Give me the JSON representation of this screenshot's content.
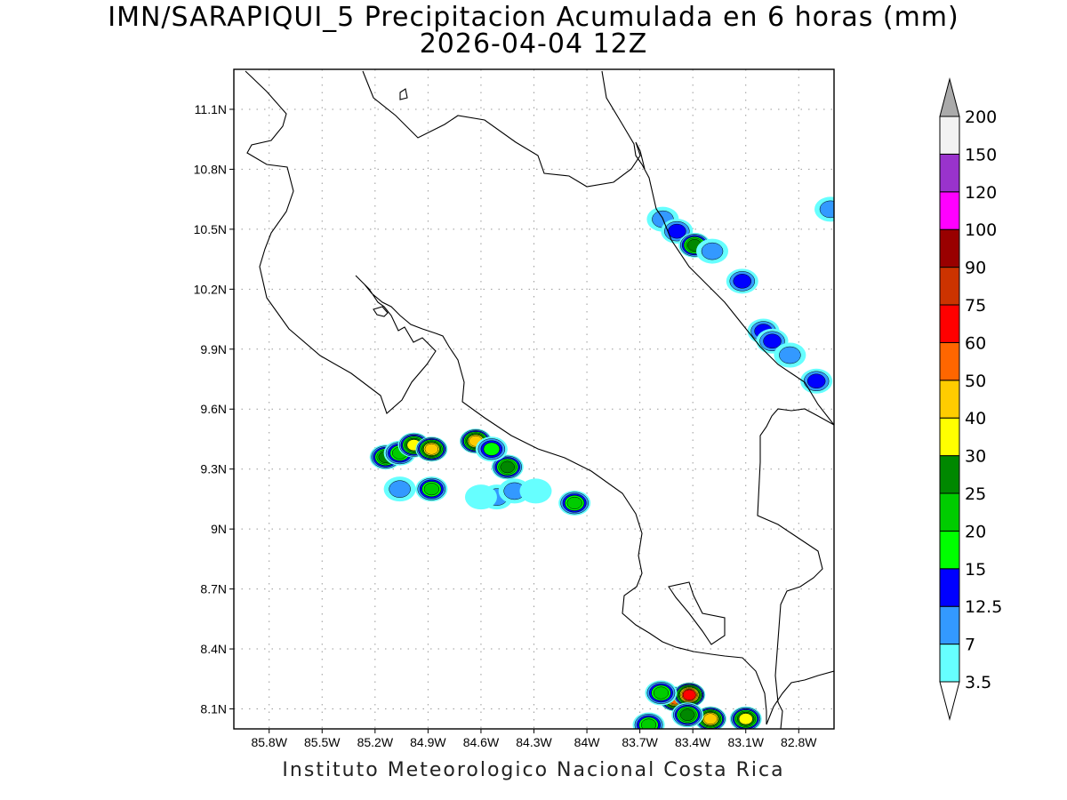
{
  "title": "IMN/SARAPIQUI_5 Precipitacion Acumulada en 6 horas (mm)",
  "subtitle": "2026-04-04 12Z",
  "footer": "Instituto Meteorologico Nacional Costa Rica",
  "map": {
    "lon_range": [
      -86.0,
      -82.6
    ],
    "lat_range": [
      8.0,
      11.3
    ],
    "lon_ticks": [
      {
        "value": -85.8,
        "label": "85.8W"
      },
      {
        "value": -85.5,
        "label": "85.5W"
      },
      {
        "value": -85.2,
        "label": "85.2W"
      },
      {
        "value": -84.9,
        "label": "84.9W"
      },
      {
        "value": -84.6,
        "label": "84.6W"
      },
      {
        "value": -84.3,
        "label": "84.3W"
      },
      {
        "value": -84.0,
        "label": "84W"
      },
      {
        "value": -83.7,
        "label": "83.7W"
      },
      {
        "value": -83.4,
        "label": "83.4W"
      },
      {
        "value": -83.1,
        "label": "83.1W"
      },
      {
        "value": -82.8,
        "label": "82.8W"
      }
    ],
    "lat_ticks": [
      {
        "value": 8.1,
        "label": "8.1N"
      },
      {
        "value": 8.4,
        "label": "8.4N"
      },
      {
        "value": 8.7,
        "label": "8.7N"
      },
      {
        "value": 9.0,
        "label": "9N"
      },
      {
        "value": 9.3,
        "label": "9.3N"
      },
      {
        "value": 9.6,
        "label": "9.6N"
      },
      {
        "value": 9.9,
        "label": "9.9N"
      },
      {
        "value": 10.2,
        "label": "10.2N"
      },
      {
        "value": 10.5,
        "label": "10.5N"
      },
      {
        "value": 10.8,
        "label": "10.8N"
      },
      {
        "value": 11.1,
        "label": "11.1N"
      }
    ],
    "grid": true
  },
  "colorbar": {
    "levels": [
      "3.5",
      "7",
      "12.5",
      "15",
      "20",
      "25",
      "30",
      "40",
      "50",
      "60",
      "75",
      "90",
      "100",
      "120",
      "150",
      "200"
    ],
    "colors": [
      "#66ffff",
      "#3399ff",
      "#0000ff",
      "#00ff00",
      "#00cc00",
      "#008800",
      "#ffff00",
      "#ffcc00",
      "#ff6600",
      "#ff0000",
      "#cc3300",
      "#990000",
      "#ff00ff",
      "#9933cc",
      "#f2f2f2",
      "#aaaaaa"
    ]
  },
  "precip_cells": [
    {
      "lon": -85.14,
      "lat": 9.36,
      "mm": 25
    },
    {
      "lon": -85.06,
      "lat": 9.38,
      "mm": 20
    },
    {
      "lon": -84.98,
      "lat": 9.42,
      "mm": 30
    },
    {
      "lon": -84.88,
      "lat": 9.4,
      "mm": 40
    },
    {
      "lon": -84.88,
      "lat": 9.2,
      "mm": 20
    },
    {
      "lon": -84.63,
      "lat": 9.44,
      "mm": 40
    },
    {
      "lon": -84.45,
      "lat": 9.31,
      "mm": 25
    },
    {
      "lon": -84.54,
      "lat": 9.4,
      "mm": 15
    },
    {
      "lon": -84.07,
      "lat": 9.13,
      "mm": 20
    },
    {
      "lon": -85.06,
      "lat": 9.2,
      "mm": 7
    },
    {
      "lon": -84.51,
      "lat": 9.16,
      "mm": 7
    },
    {
      "lon": -84.41,
      "lat": 9.19,
      "mm": 7
    },
    {
      "lon": -84.29,
      "lat": 9.19,
      "mm": 3.5
    },
    {
      "lon": -84.6,
      "lat": 9.16,
      "mm": 3.5
    },
    {
      "lon": -83.57,
      "lat": 10.55,
      "mm": 7
    },
    {
      "lon": -83.49,
      "lat": 10.49,
      "mm": 12.5
    },
    {
      "lon": -83.39,
      "lat": 10.42,
      "mm": 25
    },
    {
      "lon": -83.29,
      "lat": 10.39,
      "mm": 7
    },
    {
      "lon": -83.12,
      "lat": 10.24,
      "mm": 12.5
    },
    {
      "lon": -83.0,
      "lat": 9.99,
      "mm": 12.5
    },
    {
      "lon": -82.95,
      "lat": 9.94,
      "mm": 12.5
    },
    {
      "lon": -82.7,
      "lat": 9.74,
      "mm": 12.5
    },
    {
      "lon": -82.85,
      "lat": 9.87,
      "mm": 7
    },
    {
      "lon": -82.62,
      "lat": 10.6,
      "mm": 7
    },
    {
      "lon": -83.5,
      "lat": 8.15,
      "mm": 50
    },
    {
      "lon": -83.42,
      "lat": 8.17,
      "mm": 60
    },
    {
      "lon": -83.58,
      "lat": 8.18,
      "mm": 20
    },
    {
      "lon": -83.3,
      "lat": 8.05,
      "mm": 40
    },
    {
      "lon": -83.1,
      "lat": 8.05,
      "mm": 30
    },
    {
      "lon": -83.65,
      "lat": 8.02,
      "mm": 20
    },
    {
      "lon": -83.43,
      "lat": 8.07,
      "mm": 25
    }
  ]
}
